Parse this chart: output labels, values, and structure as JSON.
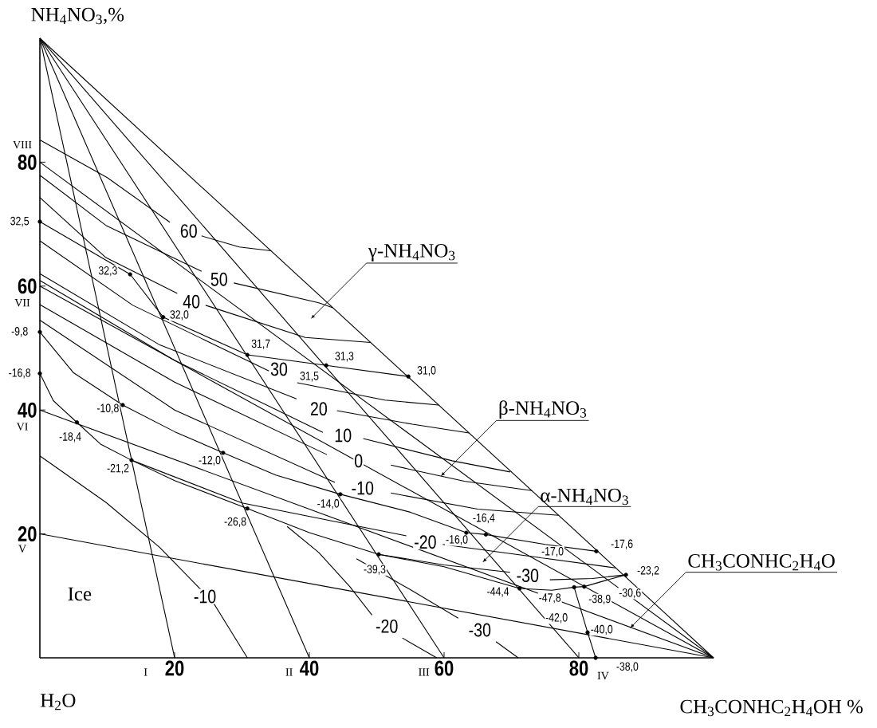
{
  "chart_data": {
    "type": "line",
    "xlabel": "CH$_{3}$CONHC$_{2}$H$_{4}$OH   %",
    "ylabel": "NH$_{4}$NO$_{3}$,%",
    "xlim": [
      0,
      100
    ],
    "ylim": [
      0,
      100
    ],
    "xticks": [
      20,
      40,
      60,
      80
    ],
    "yticks": [
      20,
      40,
      60,
      80
    ],
    "series": [
      {
        "color": "#000000",
        "x": [
          0,
          100
        ],
        "values": [
          100,
          0
        ]
      },
      {
        "color": "#000000",
        "x": [
          0,
          20
        ],
        "values": [
          100,
          0
        ]
      },
      {
        "color": "#000000",
        "x": [
          0,
          40
        ],
        "values": [
          100,
          0
        ]
      },
      {
        "color": "#000000",
        "x": [
          0,
          60
        ],
        "values": [
          100,
          0
        ]
      },
      {
        "color": "#000000",
        "x": [
          0,
          80
        ],
        "values": [
          100,
          0
        ]
      },
      {
        "color": "#000000",
        "x": [
          0,
          100
        ],
        "values": [
          20,
          0
        ]
      },
      {
        "color": "#000000",
        "x": [
          0,
          100
        ],
        "values": [
          40,
          0
        ]
      },
      {
        "color": "#000000",
        "x": [
          0,
          100
        ],
        "values": [
          60,
          0
        ]
      },
      {
        "color": "#000000",
        "x": [
          0,
          100
        ],
        "values": [
          80,
          0
        ]
      },
      {
        "color": "#000000",
        "x": [
          0,
          13.4,
          18.3,
          30.8,
          42.5,
          54.7
        ],
        "values": [
          70.4,
          61.9,
          55.0,
          48.9,
          47.2,
          45.4
        ]
      },
      {
        "color": "#000000",
        "x": [
          0,
          5,
          12.3,
          20,
          27.2,
          35,
          44.6,
          55,
          63.3,
          66.2,
          75,
          82.6
        ],
        "values": [
          52.6,
          46,
          40.8,
          36.5,
          33.1,
          29.5,
          26.4,
          23.5,
          20.2,
          19.9,
          18.3,
          17.2
        ]
      },
      {
        "color": "#000000",
        "x": [
          0,
          2,
          5.5,
          9,
          13.6,
          20,
          30.8,
          40,
          50.3,
          60,
          71.2,
          76,
          79.3
        ],
        "values": [
          45.9,
          41.5,
          38,
          34.5,
          31.9,
          28.6,
          24.1,
          20.2,
          16.7,
          14.7,
          11.2,
          10.9,
          11.4
        ]
      },
      {
        "color": "#000000",
        "x": [
          79.3,
          80.8,
          84,
          87
        ],
        "values": [
          11.4,
          11.5,
          12.5,
          13.4
        ]
      },
      {
        "color": "#000000",
        "x": [
          79.3,
          81.3,
          82.5
        ],
        "values": [
          11.4,
          4.1,
          0
        ]
      },
      {
        "color": "#000000",
        "x": [
          0,
          10,
          19.3,
          21.5,
          24,
          29.6,
          34.3
        ],
        "values": [
          83.6,
          77.5,
          70.3,
          null,
          68.1,
          66.3,
          65.7
        ]
      },
      {
        "color": "#000000",
        "x": [
          0,
          9.8,
          24,
          26.4,
          28.8,
          41.4,
          43.5
        ],
        "values": [
          77.9,
          69.8,
          62.4,
          null,
          60.5,
          57.3,
          56.5
        ]
      },
      {
        "color": "#000000",
        "x": [
          0,
          9.8,
          20.4,
          22.5,
          24.6,
          39.4,
          49.1
        ],
        "values": [
          74.3,
          64.6,
          58.8,
          null,
          56.9,
          51.7,
          50.9
        ]
      },
      {
        "color": "#000000",
        "x": [
          0,
          13.8,
          34,
          36,
          38.2,
          51.2,
          59.2
        ],
        "values": [
          67.3,
          56.9,
          46.3,
          null,
          44.4,
          41.6,
          40.8
        ]
      },
      {
        "color": "#000000",
        "x": [
          0,
          17.8,
          38.1,
          41.4,
          44.1,
          55.3,
          63.7
        ],
        "values": [
          62,
          50.5,
          41.8,
          null,
          39.9,
          37.7,
          36.3
        ]
      },
      {
        "color": "#000000",
        "x": [
          0,
          20,
          42,
          45,
          48,
          61.2,
          69.8
        ],
        "values": [
          60.9,
          48,
          36.4,
          null,
          35.4,
          31.8,
          30
        ]
      },
      {
        "color": "#000000",
        "x": [
          0,
          20,
          42.6,
          47.3,
          52.1,
          63,
          73
        ],
        "values": [
          57,
          44.5,
          32.8,
          null,
          31.1,
          28.5,
          27
        ]
      },
      {
        "color": "#000000",
        "x": [
          0,
          20,
          43.8,
          47.9,
          52.1,
          65,
          77
        ],
        "values": [
          54.5,
          40,
          28.3,
          null,
          26.6,
          24,
          23
        ]
      },
      {
        "color": "#000000",
        "x": [
          13.6,
          30,
          54.4,
          57.2,
          59.8,
          72,
          85.5
        ],
        "values": [
          31.9,
          25,
          19.7,
          null,
          18.3,
          16.5,
          14.5
        ]
      },
      {
        "color": "#000000",
        "x": [
          50.3,
          60,
          69.8,
          72.4,
          75.7,
          82,
          87
        ],
        "values": [
          16.7,
          15,
          13.8,
          null,
          12.6,
          12.8,
          13.4
        ]
      },
      {
        "color": "#000000",
        "x": [
          0,
          9.8,
          17.8,
          24,
          24.9,
          25.8,
          30.8
        ],
        "values": [
          32.6,
          25.1,
          17.8,
          10.9,
          null,
          8.8,
          0
        ]
      },
      {
        "color": "#000000",
        "x": [
          36.7,
          41.4,
          46,
          49.3,
          51.5,
          53.8,
          58.9
        ],
        "values": [
          21.2,
          17,
          11.5,
          6.9,
          null,
          3.2,
          0
        ]
      },
      {
        "color": "#000000",
        "x": [
          47,
          55,
          62.1,
          65.3,
          67.7,
          71
        ],
        "values": [
          16,
          11,
          6.4,
          null,
          2.6,
          0
        ]
      },
      {
        "type": "scatter",
        "color": "#000000",
        "x": [
          0,
          13.4,
          18.3,
          30.8,
          42.5,
          54.7,
          0,
          12.3,
          27.2,
          44.6,
          63.3,
          66.2,
          82.6,
          0,
          5.5,
          13.6,
          30.8,
          50.3,
          71.2,
          79.3,
          80.8,
          87,
          81.3,
          82.5
        ],
        "values": [
          70.4,
          61.9,
          55.0,
          48.9,
          47.2,
          45.4,
          52.6,
          40.8,
          33.1,
          26.4,
          20.2,
          19.9,
          17.2,
          45.9,
          38,
          31.9,
          24.1,
          16.7,
          11.2,
          11.4,
          11.5,
          13.4,
          4.1,
          0
        ]
      }
    ],
    "annotations": [
      "γ-NH$_{4}$NO$_{3}$",
      {
        "text": "β-NH$_{4}$NO$_{3}$",
        "x": 59.5,
        "y": 29.3
      },
      "α-NH$_{4}$NO$_{3}$",
      {
        "text": "CH$_{3}$CONHC$_{2}$H$_{4}$O",
        "x": 87.6,
        "y": 4.8
      },
      "Ice",
      "H$_{2}$O",
      "VIII",
      "VII",
      "VI",
      "V",
      "I",
      "II",
      "III",
      "IV",
      "32,5",
      "32,3",
      "32,0",
      "31,7",
      "31,3",
      "31,5",
      "31,0",
      "-9,8",
      "-16,8",
      "-10,8",
      "-18,4",
      "-21,2",
      "-12,0",
      "-14,0",
      "-26,8",
      "-39,3",
      "-16,0",
      "-16,4",
      "-17,0",
      "-17,6",
      "-23,2",
      "-30,6",
      "-44,4",
      "-47,8",
      "-38,9",
      "-42,0",
      "-40,0",
      "-38,0",
      "60",
      "50",
      "40",
      "30",
      "20",
      "10",
      "0",
      "-10",
      "-20",
      "-30",
      "-10",
      "-20",
      "-30"
    ]
  }
}
